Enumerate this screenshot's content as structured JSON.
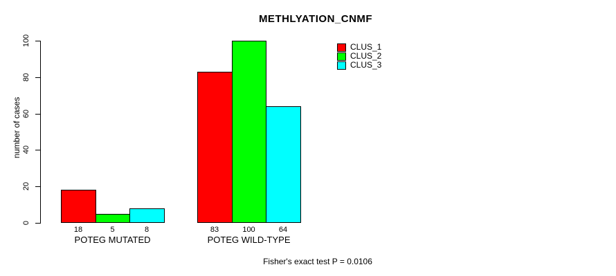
{
  "chart_data": {
    "type": "bar",
    "title": "METHLYATION_CNMF",
    "xlabel": "",
    "ylabel": "number of cases",
    "categories": [
      "POTEG MUTATED",
      "POTEG WILD-TYPE"
    ],
    "series": [
      {
        "name": "CLUS_1",
        "color": "#ff0000",
        "values": [
          18,
          83
        ]
      },
      {
        "name": "CLUS_2",
        "color": "#00ff00",
        "values": [
          5,
          100
        ]
      },
      {
        "name": "CLUS_3",
        "color": "#00ffff",
        "values": [
          8,
          64
        ]
      }
    ],
    "ylim": [
      0,
      100
    ],
    "yticks": [
      0,
      20,
      40,
      60,
      80,
      100
    ],
    "bar_value_labels": [
      [
        18,
        5,
        8
      ],
      [
        83,
        100,
        64
      ]
    ],
    "grid": false,
    "legend_position": "top-right",
    "annotation": "Fisher's exact test P = 0.0106"
  }
}
